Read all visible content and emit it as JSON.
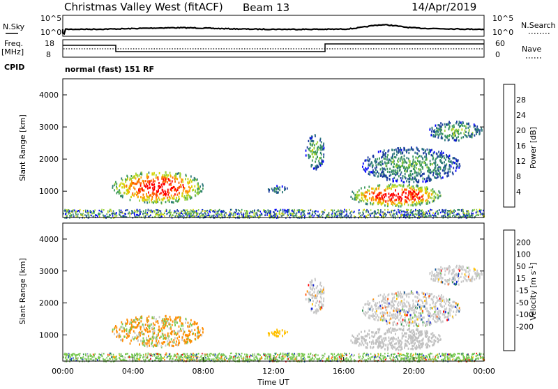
{
  "header": {
    "title": "Christmas Valley West (fitACF)",
    "beam": "Beam 13",
    "date": "14/Apr/2019"
  },
  "noise_panel": {
    "left_label": "N.Sky",
    "right_label": "N.Search",
    "left_ticks": [
      "10^5",
      "10^0"
    ],
    "right_ticks": [
      "10^5",
      "10^0"
    ]
  },
  "freq_panel": {
    "left_label_1": "Freq.",
    "left_label_2": "[MHz]",
    "right_label": "Nave",
    "left_ticks": [
      "18",
      "8"
    ],
    "right_ticks": [
      "60",
      "0"
    ],
    "cpid_label": "CPID",
    "cpid_text": "normal (fast) 151 RF"
  },
  "colors": {
    "power_scale": [
      "#0000ff",
      "#1a3a9e",
      "#2f7a7a",
      "#3c9a5a",
      "#9ad23c",
      "#d4d400",
      "#ffa000",
      "#ff6400",
      "#ff0000"
    ],
    "velocity_scale": [
      "#1a2ad4",
      "#1a5a9a",
      "#2a8a4a",
      "#78c850",
      "#c8c8c8",
      "#c8c8c8",
      "#ffc000",
      "#ff8c00",
      "#ff5000",
      "#ff0000"
    ],
    "ground_scatter": "#c0c0c0"
  },
  "chart_data": [
    {
      "type": "heatmap",
      "panel": "power",
      "ylabel": "Slant Range [km]",
      "xlabel": "Time UT",
      "yticks": [
        "1000",
        "2000",
        "3000",
        "4000"
      ],
      "ylim": [
        180,
        4500
      ],
      "xlim": [
        0,
        24
      ],
      "colorbar_label": "Power [dB]",
      "colorbar_ticks": [
        "4",
        "8",
        "12",
        "16",
        "20",
        "24",
        "28"
      ],
      "colorbar_range": [
        0,
        32
      ],
      "regions": [
        {
          "t_start": 2.8,
          "t_end": 8.0,
          "range_low": 650,
          "range_high": 1650,
          "peak_db": 30
        },
        {
          "t_start": 13.8,
          "t_end": 14.9,
          "range_low": 1700,
          "range_high": 2800,
          "peak_db": 14
        },
        {
          "t_start": 11.6,
          "t_end": 12.8,
          "range_low": 950,
          "range_high": 1200,
          "peak_db": 10
        },
        {
          "t_start": 16.3,
          "t_end": 21.6,
          "range_low": 550,
          "range_high": 1250,
          "peak_db": 30
        },
        {
          "t_start": 17.0,
          "t_end": 22.6,
          "range_low": 1300,
          "range_high": 2400,
          "peak_db": 12
        },
        {
          "t_start": 20.8,
          "t_end": 23.9,
          "range_low": 2600,
          "range_high": 3200,
          "peak_db": 14
        }
      ]
    },
    {
      "type": "heatmap",
      "panel": "velocity",
      "ylabel": "Slant Range [km]",
      "xlabel": "Time UT",
      "yticks": [
        "1000",
        "2000",
        "3000",
        "4000"
      ],
      "ylim": [
        180,
        4500
      ],
      "xlim": [
        0,
        24
      ],
      "xticks": [
        "00:00",
        "04:00",
        "08:00",
        "12:00",
        "16:00",
        "20:00",
        "00:00"
      ],
      "colorbar_label": "Velocity [m s-1]",
      "colorbar_ticks": [
        "200",
        "100",
        "50",
        "15",
        "-15",
        "-50",
        "-100",
        "-200"
      ],
      "colorbar_range": [
        -250,
        250
      ]
    }
  ]
}
